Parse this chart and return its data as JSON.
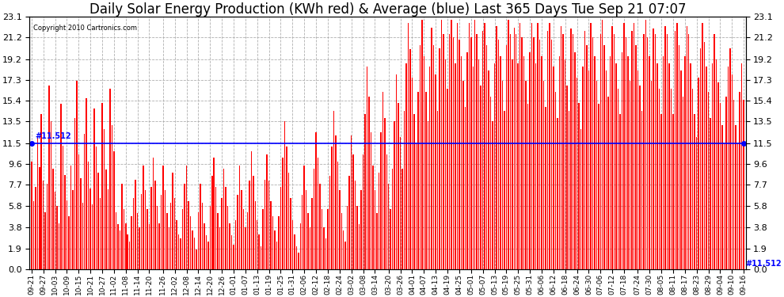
{
  "title": "Daily Solar Energy Production (KWh red) & Average (blue) Last 365 Days Tue Sep 21 07:07",
  "copyright": "Copyright 2010 Cartronics.com",
  "average_value": 11.512,
  "ylim": [
    0.0,
    23.1
  ],
  "yticks": [
    0.0,
    1.9,
    3.8,
    5.8,
    7.7,
    9.6,
    11.5,
    13.5,
    15.4,
    17.3,
    19.2,
    21.2,
    23.1
  ],
  "bar_color": "#ff0000",
  "avg_line_color": "#0000ff",
  "background_color": "#ffffff",
  "grid_color": "#aaaaaa",
  "title_fontsize": 12,
  "x_tick_labels": [
    "09-21",
    "09-27",
    "10-03",
    "10-09",
    "10-15",
    "10-21",
    "10-27",
    "11-02",
    "11-08",
    "11-14",
    "11-20",
    "11-26",
    "12-02",
    "12-08",
    "12-14",
    "12-20",
    "12-26",
    "01-01",
    "01-07",
    "01-13",
    "01-19",
    "01-25",
    "01-31",
    "02-06",
    "02-12",
    "02-18",
    "02-24",
    "03-02",
    "03-08",
    "03-14",
    "03-20",
    "03-26",
    "04-01",
    "04-07",
    "04-13",
    "04-19",
    "04-25",
    "05-01",
    "05-07",
    "05-13",
    "05-19",
    "05-25",
    "05-31",
    "06-06",
    "06-12",
    "06-18",
    "06-24",
    "06-30",
    "07-06",
    "07-12",
    "07-18",
    "07-24",
    "07-30",
    "08-05",
    "08-11",
    "08-17",
    "08-23",
    "08-29",
    "09-04",
    "09-10",
    "09-16"
  ],
  "values": [
    9.8,
    6.2,
    7.5,
    12.1,
    9.3,
    14.2,
    8.1,
    5.2,
    7.8,
    16.8,
    13.5,
    9.2,
    7.1,
    5.8,
    4.2,
    15.1,
    11.3,
    8.6,
    6.3,
    4.8,
    9.5,
    7.2,
    13.8,
    17.2,
    10.5,
    8.3,
    6.1,
    12.4,
    15.6,
    9.8,
    7.4,
    5.9,
    14.7,
    11.2,
    8.8,
    6.5,
    15.2,
    12.8,
    9.1,
    7.3,
    16.5,
    13.2,
    10.8,
    5.2,
    4.1,
    3.5,
    7.8,
    5.5,
    4.2,
    3.2,
    2.5,
    4.8,
    6.5,
    8.2,
    5.1,
    3.8,
    6.9,
    9.5,
    7.2,
    5.5,
    4.1,
    7.5,
    10.2,
    8.1,
    5.8,
    4.2,
    6.8,
    9.5,
    7.2,
    5.1,
    3.8,
    6.1,
    8.8,
    6.5,
    4.5,
    3.2,
    2.8,
    5.5,
    7.8,
    9.5,
    6.2,
    4.8,
    3.5,
    2.9,
    1.8,
    5.2,
    7.8,
    6.1,
    4.2,
    3.1,
    2.5,
    5.8,
    8.5,
    10.2,
    7.5,
    5.1,
    3.8,
    6.5,
    9.2,
    7.5,
    5.8,
    4.2,
    3.1,
    2.2,
    4.5,
    6.8,
    9.5,
    7.2,
    5.5,
    3.8,
    5.2,
    8.1,
    10.8,
    8.5,
    6.2,
    4.5,
    3.2,
    2.1,
    5.5,
    8.2,
    10.5,
    8.1,
    6.2,
    4.8,
    3.5,
    2.5,
    4.8,
    7.5,
    10.2,
    13.5,
    11.2,
    8.8,
    6.5,
    4.5,
    3.2,
    2.1,
    1.5,
    4.2,
    6.8,
    9.5,
    7.2,
    5.1,
    3.8,
    6.5,
    9.2,
    12.5,
    10.2,
    7.8,
    5.5,
    3.8,
    2.8,
    5.5,
    8.5,
    11.2,
    14.5,
    12.2,
    9.8,
    7.2,
    5.1,
    3.5,
    2.5,
    5.8,
    8.5,
    12.2,
    10.5,
    8.1,
    5.8,
    4.1,
    7.2,
    10.5,
    14.2,
    18.5,
    15.8,
    12.5,
    9.5,
    7.2,
    5.1,
    8.8,
    12.5,
    16.2,
    13.8,
    10.5,
    7.8,
    5.5,
    9.2,
    13.5,
    17.8,
    15.2,
    12.1,
    9.2,
    14.5,
    18.8,
    22.5,
    20.1,
    17.5,
    14.2,
    11.5,
    16.2,
    20.5,
    22.8,
    19.5,
    16.2,
    13.5,
    18.5,
    22.1,
    20.5,
    17.8,
    14.5,
    20.2,
    22.8,
    21.5,
    19.2,
    16.5,
    21.5,
    22.8,
    21.2,
    18.8,
    22.5,
    21.0,
    19.5,
    17.2,
    14.8,
    19.8,
    22.5,
    21.2,
    18.5,
    22.8,
    21.5,
    19.2,
    16.8,
    21.8,
    22.5,
    20.5,
    18.2,
    15.8,
    13.5,
    18.8,
    22.2,
    21.0,
    19.5,
    17.2,
    14.5,
    20.5,
    22.8,
    21.5,
    19.2,
    22.1,
    21.5,
    18.8,
    22.5,
    21.2,
    19.5,
    17.2,
    15.1,
    19.8,
    22.5,
    21.2,
    18.8,
    22.5,
    21.0,
    19.5,
    17.2,
    14.8,
    21.8,
    22.5,
    21.0,
    18.5,
    16.2,
    13.8,
    19.5,
    22.2,
    21.5,
    19.2,
    16.8,
    14.5,
    22.0,
    21.5,
    19.8,
    17.5,
    15.2,
    12.8,
    18.5,
    21.8,
    20.5,
    18.2,
    22.5,
    21.2,
    19.5,
    17.2,
    15.1,
    21.5,
    22.8,
    20.5,
    18.2,
    15.8,
    19.5,
    22.2,
    21.5,
    18.8,
    16.5,
    14.2,
    19.8,
    22.5,
    21.2,
    19.5,
    17.2,
    21.8,
    22.5,
    20.5,
    18.2,
    16.8,
    14.5,
    21.5,
    22.8,
    21.2,
    19.5,
    17.2,
    22.0,
    21.5,
    18.8,
    16.5,
    14.2,
    19.5,
    22.2,
    21.5,
    18.8,
    16.5,
    14.2,
    21.8,
    22.5,
    20.5,
    18.2,
    15.8,
    19.5,
    22.2,
    21.5,
    18.8,
    16.5,
    14.2,
    12.1,
    17.5,
    20.2,
    22.5,
    20.8,
    18.5,
    16.2,
    13.8,
    18.8,
    21.5,
    19.2,
    17.1,
    15.2,
    13.2,
    11.5,
    15.8,
    18.5,
    20.2,
    17.8,
    15.5,
    13.2,
    11.5,
    16.2,
    18.8,
    15.5
  ]
}
